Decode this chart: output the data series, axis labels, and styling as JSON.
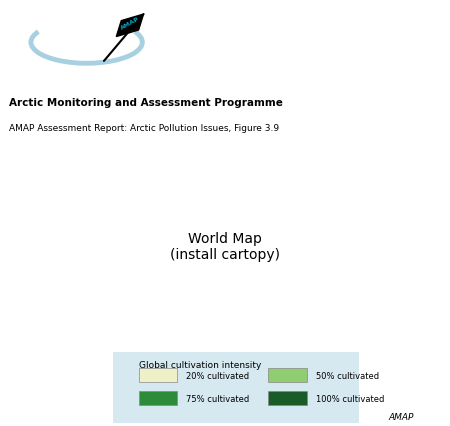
{
  "title_bold": "Arctic Monitoring and Assessment Programme",
  "title_sub": "AMAP Assessment Report: Arctic Pollution Issues, Figure 3.9",
  "legend_title": "Global cultivation intensity",
  "legend_items": [
    {
      "label": "20% cultivated",
      "color": "#f0f0c8"
    },
    {
      "label": "50% cultivated",
      "color": "#90cc70"
    },
    {
      "label": "75% cultivated",
      "color": "#2e8b3a"
    },
    {
      "label": "100% cultivated",
      "color": "#1a5c28"
    }
  ],
  "map_bg": "#d6e8f0",
  "land_base": "#f5f0c8",
  "border_color": "#6ab0b8",
  "logo_text_color": "#00aacc",
  "watermark": "AMAP",
  "fig_bg": "#ffffff"
}
